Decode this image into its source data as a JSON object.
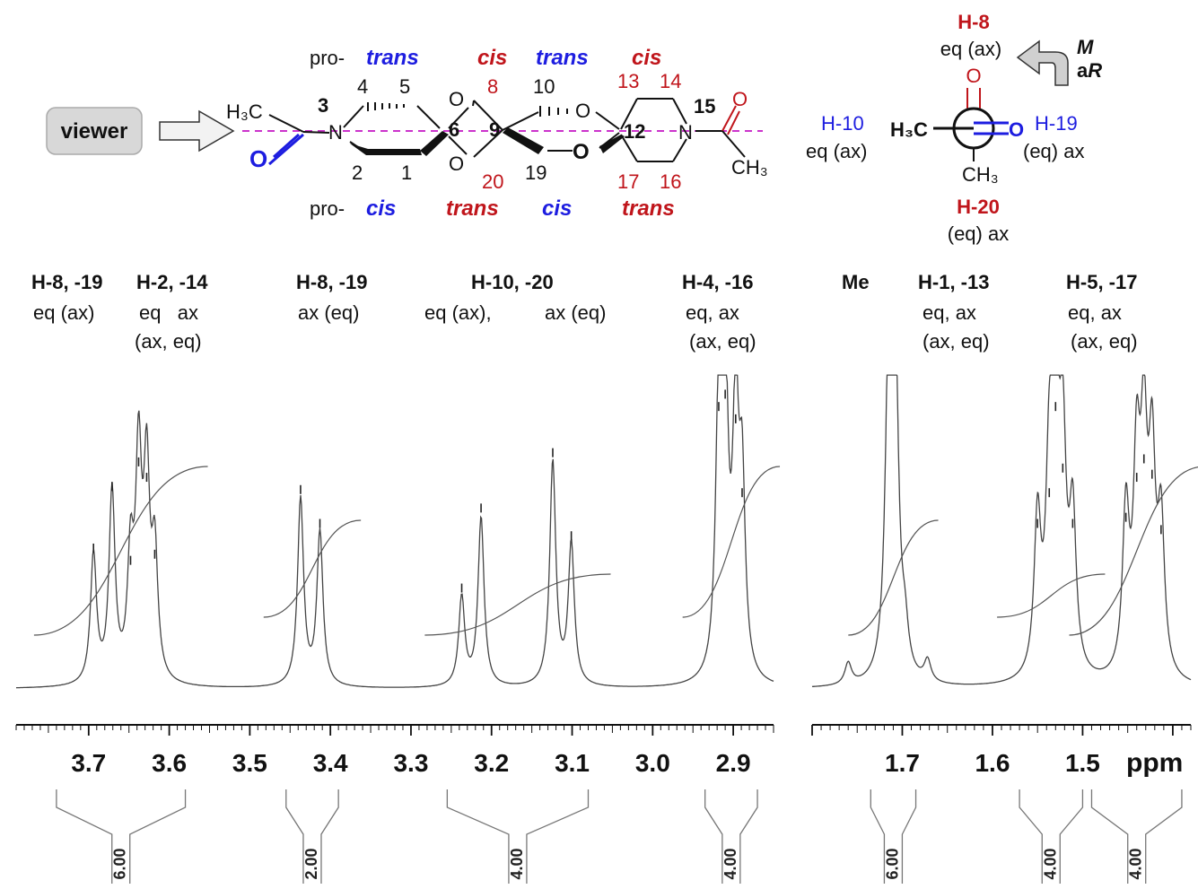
{
  "colors": {
    "ink": "#111111",
    "red": "#c0151b",
    "blue": "#1d1de0",
    "magenta": "#cc33cc",
    "trace": "#444444",
    "viewer_fill": "#d8d8d8"
  },
  "structure": {
    "viewer_label": "viewer",
    "pro_top": "pro-",
    "pro_bottom": "pro-",
    "h3c": "H₃C",
    "ch3": "CH₃",
    "n3": "N",
    "n15": "N",
    "o_blue": "O",
    "o_red": "O",
    "ring_o": [
      "O",
      "O",
      "O",
      "O"
    ],
    "labels_top": [
      {
        "text": "trans",
        "color": "blue"
      },
      {
        "text": "cis",
        "color": "red"
      },
      {
        "text": "trans",
        "color": "blue"
      },
      {
        "text": "cis",
        "color": "red"
      }
    ],
    "labels_bottom": [
      {
        "text": "cis",
        "color": "blue"
      },
      {
        "text": "trans",
        "color": "red"
      },
      {
        "text": "cis",
        "color": "blue"
      },
      {
        "text": "trans",
        "color": "red"
      }
    ],
    "numbers_black": [
      "4",
      "5",
      "10",
      "2",
      "1",
      "19"
    ],
    "numbers_red": [
      "8",
      "13",
      "14",
      "20",
      "17",
      "16"
    ],
    "numbers_bold": [
      "3",
      "6",
      "9",
      "12",
      "15"
    ]
  },
  "newman": {
    "top_label": "H-8",
    "top_sub": "eq (ax)",
    "bottom_label": "H-20",
    "bottom_sub": "(eq) ax",
    "left_label": "H-10",
    "left_sub": "eq (ax)",
    "right_label": "H-19",
    "right_sub": "(eq) ax",
    "front_left": "H₃C",
    "front_right": "O",
    "back_top": "O",
    "back_bottom": "CH₃",
    "helix_m": "M",
    "helix_a": "a",
    "helix_r": "R"
  },
  "peak_labels": [
    {
      "title": "H-8, -19",
      "lines": [
        "eq (ax)"
      ]
    },
    {
      "title": "H-2, -14",
      "lines": [
        "eq   ax",
        "(ax, eq)"
      ]
    },
    {
      "title": "H-8, -19",
      "lines": [
        "ax (eq)"
      ]
    },
    {
      "title": "H-10, -20",
      "lines": [
        "eq (ax),",
        "ax (eq)"
      ]
    },
    {
      "title": "H-4, -16",
      "lines": [
        "eq, ax",
        "(ax, eq)"
      ]
    },
    {
      "title": "Me",
      "lines": []
    },
    {
      "title": "H-1, -13",
      "lines": [
        "eq, ax",
        "(ax, eq)"
      ]
    },
    {
      "title": "H-5, -17",
      "lines": [
        "eq, ax",
        "(ax, eq)"
      ]
    }
  ],
  "chart_data": {
    "type": "line",
    "title": "",
    "xlabel": "ppm",
    "ylabel": "",
    "x_reversed": true,
    "axis_break": [
      2.85,
      1.8
    ],
    "xlim_left_panel": [
      3.79,
      2.85
    ],
    "xlim_right_panel": [
      1.8,
      1.38
    ],
    "tick_labels": [
      "3.7",
      "3.6",
      "3.5",
      "3.4",
      "3.3",
      "3.2",
      "3.1",
      "3.0",
      "2.9",
      "1.7",
      "1.6",
      "1.5"
    ],
    "tick_values": [
      3.7,
      3.6,
      3.5,
      3.4,
      3.3,
      3.2,
      3.1,
      3.0,
      2.9,
      1.7,
      1.6,
      1.5
    ],
    "series": [
      {
        "peaks": [
          {
            "ppm": 3.694,
            "height": 0.42
          },
          {
            "ppm": 3.671,
            "height": 0.62
          },
          {
            "ppm": 3.648,
            "height": 0.38
          },
          {
            "ppm": 3.638,
            "height": 0.7
          },
          {
            "ppm": 3.628,
            "height": 0.65
          },
          {
            "ppm": 3.618,
            "height": 0.4
          },
          {
            "ppm": 3.437,
            "height": 0.61
          },
          {
            "ppm": 3.413,
            "height": 0.5
          },
          {
            "ppm": 3.237,
            "height": 0.29
          },
          {
            "ppm": 3.213,
            "height": 0.55
          },
          {
            "ppm": 3.124,
            "height": 0.73
          },
          {
            "ppm": 3.101,
            "height": 0.46
          },
          {
            "ppm": 2.918,
            "height": 0.88
          },
          {
            "ppm": 2.91,
            "height": 0.92
          },
          {
            "ppm": 2.897,
            "height": 0.84
          },
          {
            "ppm": 2.889,
            "height": 0.6
          },
          {
            "ppm": 1.76,
            "height": 0.07
          },
          {
            "ppm": 1.715,
            "height": 1.0
          },
          {
            "ppm": 1.708,
            "height": 1.0
          },
          {
            "ppm": 1.697,
            "height": 0.12
          },
          {
            "ppm": 1.672,
            "height": 0.07
          },
          {
            "ppm": 1.55,
            "height": 0.5
          },
          {
            "ppm": 1.537,
            "height": 0.6
          },
          {
            "ppm": 1.53,
            "height": 0.88
          },
          {
            "ppm": 1.522,
            "height": 0.68
          },
          {
            "ppm": 1.511,
            "height": 0.5
          },
          {
            "ppm": 1.452,
            "height": 0.52
          },
          {
            "ppm": 1.44,
            "height": 0.65
          },
          {
            "ppm": 1.432,
            "height": 0.71
          },
          {
            "ppm": 1.423,
            "height": 0.66
          },
          {
            "ppm": 1.413,
            "height": 0.48
          }
        ]
      }
    ],
    "integrals": [
      {
        "range": [
          3.74,
          3.58
        ],
        "value": "6.00"
      },
      {
        "range": [
          3.455,
          3.39
        ],
        "value": "2.00"
      },
      {
        "range": [
          3.255,
          3.08
        ],
        "value": "4.00"
      },
      {
        "range": [
          2.935,
          2.87
        ],
        "value": "4.00"
      },
      {
        "range": [
          1.735,
          1.685
        ],
        "value": "6.00"
      },
      {
        "range": [
          1.57,
          1.5
        ],
        "value": "4.00"
      },
      {
        "range": [
          1.49,
          1.39
        ],
        "value": "4.00"
      }
    ]
  }
}
